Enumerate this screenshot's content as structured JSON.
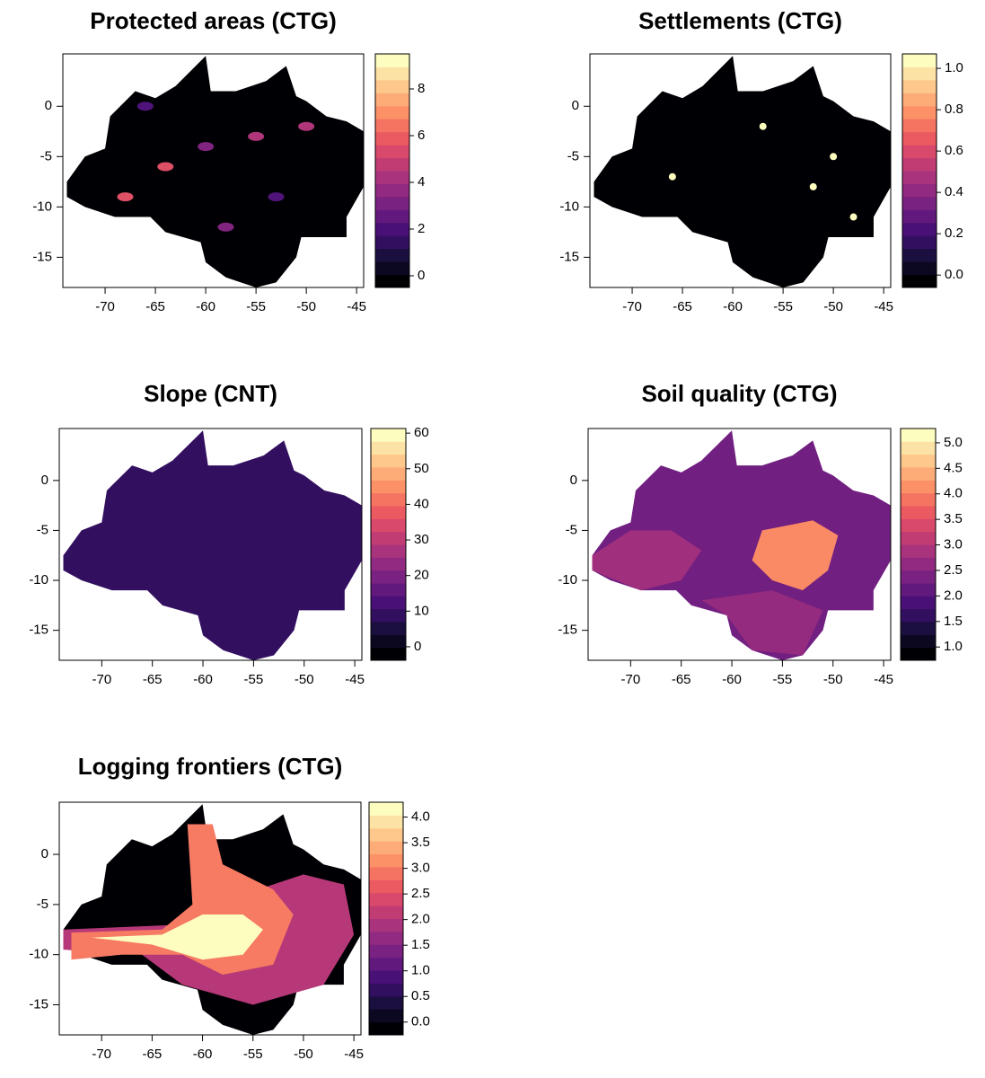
{
  "palette": [
    "#000004",
    "#180f3d",
    "#440f76",
    "#721f81",
    "#9e2f7f",
    "#cd4071",
    "#f1605d",
    "#fd9668",
    "#feca8d",
    "#fcfdbf"
  ],
  "panels": [
    {
      "title": "Protected areas (CTG)",
      "xlim": [
        -74.2,
        -44.3
      ],
      "ylim": [
        -18,
        5.2
      ],
      "xticks": [
        -70,
        -65,
        -60,
        -55,
        -50,
        -45
      ],
      "yticks": [
        0,
        -5,
        -10,
        -15
      ],
      "colorbar": {
        "lim": [
          -0.5,
          9.5
        ],
        "ticks": [
          0,
          2,
          4,
          6,
          8
        ]
      }
    },
    {
      "title": "Settlements (CTG)",
      "xlim": [
        -74.2,
        -44.3
      ],
      "ylim": [
        -18,
        5.2
      ],
      "xticks": [
        -70,
        -65,
        -60,
        -55,
        -50,
        -45
      ],
      "yticks": [
        0,
        -5,
        -10,
        -15
      ],
      "colorbar": {
        "lim": [
          -0.06,
          1.07
        ],
        "ticks": [
          {
            "value": 0,
            "label": "0.0"
          },
          {
            "value": 0.2,
            "label": "0.2"
          },
          {
            "value": 0.4,
            "label": "0.4"
          },
          {
            "value": 0.6,
            "label": "0.6"
          },
          {
            "value": 0.8,
            "label": "0.8"
          },
          {
            "value": 1,
            "label": "1.0"
          }
        ]
      }
    },
    {
      "title": "Slope (CNT)",
      "xlim": [
        -74.2,
        -44.3
      ],
      "ylim": [
        -18,
        5.2
      ],
      "xticks": [
        -70,
        -65,
        -60,
        -55,
        -50,
        -45
      ],
      "yticks": [
        0,
        -5,
        -10,
        -15
      ],
      "colorbar": {
        "lim": [
          -3.8,
          61.3
        ],
        "ticks": [
          0,
          10,
          20,
          30,
          40,
          50,
          60
        ]
      }
    },
    {
      "title": "Soil quality (CTG)",
      "xlim": [
        -74.2,
        -44.3
      ],
      "ylim": [
        -18,
        5.2
      ],
      "xticks": [
        -70,
        -65,
        -60,
        -55,
        -50,
        -45
      ],
      "yticks": [
        0,
        -5,
        -10,
        -15
      ],
      "colorbar": {
        "lim": [
          0.74,
          5.28
        ],
        "ticks": [
          {
            "value": 1,
            "label": "1.0"
          },
          1.5,
          {
            "value": 2,
            "label": "2.0"
          },
          2.5,
          {
            "value": 3,
            "label": "3.0"
          },
          3.5,
          {
            "value": 4,
            "label": "4.0"
          },
          4.5,
          {
            "value": 5,
            "label": "5.0"
          }
        ]
      }
    },
    {
      "title": "Logging frontiers (CTG)",
      "xlim": [
        -74.2,
        -44.3
      ],
      "ylim": [
        -18,
        5.2
      ],
      "xticks": [
        -70,
        -65,
        -60,
        -55,
        -50,
        -45
      ],
      "yticks": [
        0,
        -5,
        -10,
        -15
      ],
      "colorbar": {
        "lim": [
          -0.25,
          4.29
        ],
        "ticks": [
          {
            "value": 0,
            "label": "0.0"
          },
          0.5,
          {
            "value": 1,
            "label": "1.0"
          },
          1.5,
          {
            "value": 2,
            "label": "2.0"
          },
          2.5,
          {
            "value": 3,
            "label": "3.0"
          },
          3.5,
          {
            "value": 4,
            "label": "4.0"
          }
        ]
      }
    }
  ]
}
